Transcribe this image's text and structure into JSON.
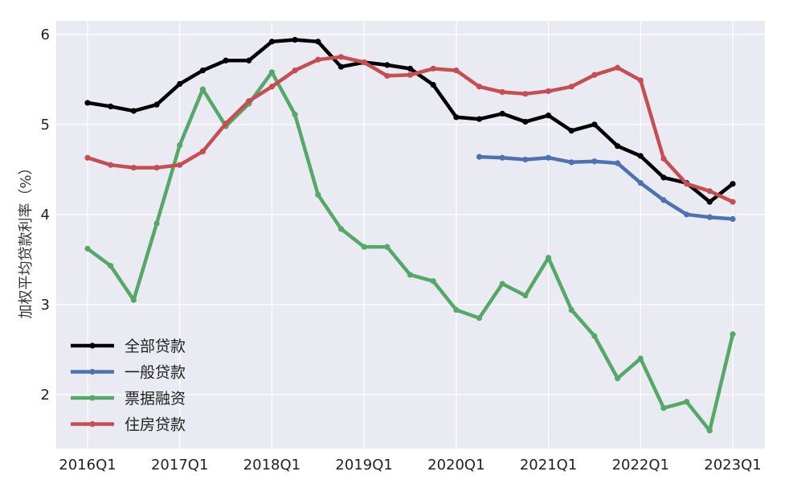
{
  "chart_data": {
    "type": "line",
    "title": "",
    "xlabel": "",
    "ylabel": "加权平均贷款利率（%）",
    "ylim": [
      1.4,
      6.15
    ],
    "yticks": [
      2,
      3,
      4,
      5,
      6
    ],
    "x": [
      "2016Q1",
      "2016Q2",
      "2016Q3",
      "2016Q4",
      "2017Q1",
      "2017Q2",
      "2017Q3",
      "2017Q4",
      "2018Q1",
      "2018Q2",
      "2018Q3",
      "2018Q4",
      "2019Q1",
      "2019Q2",
      "2019Q3",
      "2019Q4",
      "2020Q1",
      "2020Q2",
      "2020Q3",
      "2020Q4",
      "2021Q1",
      "2021Q2",
      "2021Q3",
      "2021Q4",
      "2022Q1",
      "2022Q2",
      "2022Q3",
      "2022Q4",
      "2023Q1"
    ],
    "xticks": [
      "2016Q1",
      "2017Q1",
      "2018Q1",
      "2019Q1",
      "2020Q1",
      "2021Q1",
      "2022Q1",
      "2023Q1"
    ],
    "grid": true,
    "legend_position": "lower-left",
    "background": "#eaeaf2",
    "series": [
      {
        "name": "全部贷款",
        "color": "#000000",
        "values": [
          5.24,
          5.2,
          5.15,
          5.22,
          5.45,
          5.6,
          5.71,
          5.71,
          5.92,
          5.94,
          5.92,
          5.64,
          5.69,
          5.66,
          5.62,
          5.44,
          5.08,
          5.06,
          5.12,
          5.03,
          5.1,
          4.93,
          5.0,
          4.76,
          4.65,
          4.41,
          4.35,
          4.14,
          4.34
        ]
      },
      {
        "name": "一般贷款",
        "color": "#4c72b0",
        "values": [
          null,
          null,
          null,
          null,
          null,
          null,
          null,
          null,
          null,
          null,
          null,
          null,
          null,
          null,
          null,
          null,
          null,
          4.64,
          4.63,
          4.61,
          4.63,
          4.58,
          4.59,
          4.57,
          4.35,
          4.16,
          4.0,
          3.97,
          3.95
        ]
      },
      {
        "name": "票据融资",
        "color": "#55a868",
        "values": [
          3.62,
          3.43,
          3.05,
          3.9,
          4.77,
          5.39,
          4.98,
          5.23,
          5.58,
          5.11,
          4.22,
          3.84,
          3.64,
          3.64,
          3.33,
          3.26,
          2.94,
          2.85,
          3.23,
          3.1,
          3.52,
          2.94,
          2.65,
          2.18,
          2.4,
          1.85,
          1.92,
          1.6,
          2.67
        ]
      },
      {
        "name": "住房贷款",
        "color": "#c44e52",
        "values": [
          4.63,
          4.55,
          4.52,
          4.52,
          4.55,
          4.7,
          5.01,
          5.26,
          5.42,
          5.6,
          5.72,
          5.75,
          5.69,
          5.54,
          5.55,
          5.62,
          5.6,
          5.42,
          5.36,
          5.34,
          5.37,
          5.42,
          5.55,
          5.63,
          5.49,
          4.62,
          4.34,
          4.26,
          4.14
        ]
      }
    ]
  }
}
